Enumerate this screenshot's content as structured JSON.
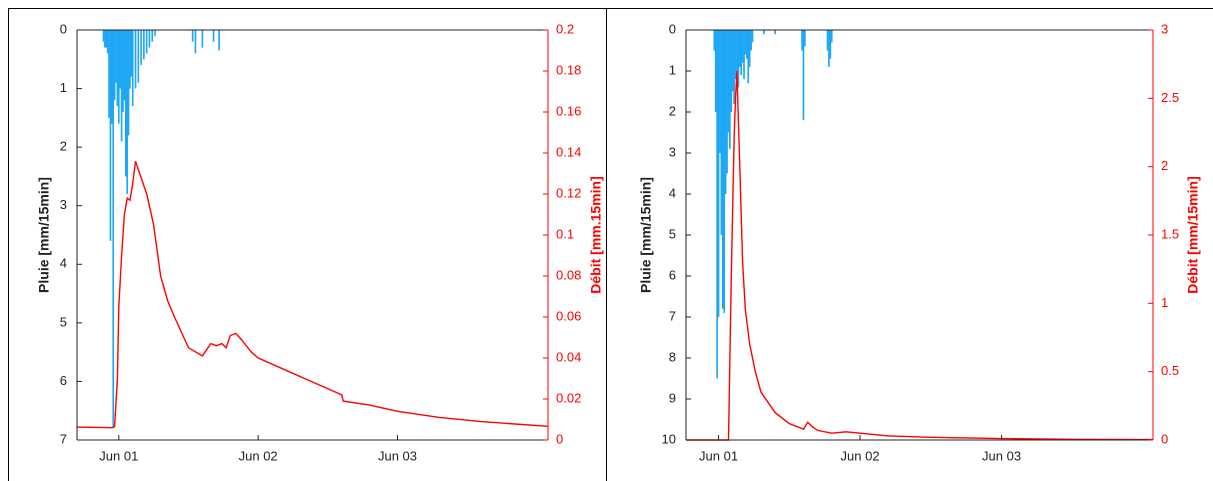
{
  "chart_data": [
    {
      "type": "hyetograph",
      "ylabel": "Pluie [mm/15min]",
      "y2label": "Débit [mm.15min]",
      "ylim": [
        0,
        7
      ],
      "yticks": [
        0,
        1,
        2,
        3,
        4,
        5,
        6,
        7
      ],
      "yreverse": true,
      "y2lim": [
        0,
        0.2
      ],
      "y2ticks": [
        0,
        0.02,
        0.04,
        0.06,
        0.08,
        0.1,
        0.12,
        0.14,
        0.16,
        0.18,
        0.2
      ],
      "xlim": [
        0.7,
        4.08
      ],
      "xticks": [
        {
          "value": 1,
          "label": "Jun 01"
        },
        {
          "value": 2,
          "label": "Jun 02"
        },
        {
          "value": 3,
          "label": "Jun 03"
        }
      ],
      "rain": {
        "color": "#1ea7f5",
        "x": [
          0.89,
          0.9,
          0.91,
          0.92,
          0.93,
          0.94,
          0.95,
          0.96,
          0.97,
          0.98,
          0.99,
          1.0,
          1.01,
          1.02,
          1.03,
          1.04,
          1.05,
          1.06,
          1.07,
          1.08,
          1.09,
          1.1,
          1.12,
          1.14,
          1.16,
          1.18,
          1.2,
          1.22,
          1.24,
          1.26,
          1.53,
          1.55,
          1.6,
          1.68,
          1.72
        ],
        "values": [
          0.2,
          0.3,
          0.3,
          0.4,
          1.5,
          3.6,
          1.6,
          6.8,
          1.2,
          0.9,
          1.3,
          1.6,
          1.0,
          1.9,
          1.4,
          1.2,
          2.5,
          2.8,
          1.8,
          1.0,
          0.8,
          1.3,
          1.0,
          0.9,
          0.6,
          0.5,
          0.4,
          0.3,
          0.2,
          0.1,
          0.2,
          0.4,
          0.3,
          0.2,
          0.35
        ]
      },
      "flow": {
        "color": "#ff0000",
        "axis": "y2",
        "x": [
          0.7,
          0.95,
          0.97,
          0.99,
          1.0,
          1.02,
          1.04,
          1.06,
          1.08,
          1.1,
          1.12,
          1.15,
          1.2,
          1.25,
          1.3,
          1.35,
          1.4,
          1.5,
          1.6,
          1.63,
          1.66,
          1.7,
          1.74,
          1.77,
          1.8,
          1.84,
          1.88,
          1.95,
          2.0,
          2.2,
          2.4,
          2.6,
          2.61,
          2.8,
          3.0,
          3.3,
          3.6,
          4.08
        ],
        "values": [
          0.0063,
          0.006,
          0.0065,
          0.03,
          0.065,
          0.09,
          0.11,
          0.118,
          0.117,
          0.125,
          0.136,
          0.13,
          0.12,
          0.105,
          0.08,
          0.068,
          0.06,
          0.045,
          0.041,
          0.044,
          0.047,
          0.046,
          0.047,
          0.045,
          0.051,
          0.052,
          0.049,
          0.043,
          0.04,
          0.034,
          0.028,
          0.022,
          0.019,
          0.017,
          0.014,
          0.011,
          0.009,
          0.0067
        ]
      }
    },
    {
      "type": "hyetograph",
      "ylabel": "Pluie [mm/15min]",
      "y2label": "Débit [mm/15min]",
      "ylim": [
        0,
        10
      ],
      "yticks": [
        0,
        1,
        2,
        3,
        4,
        5,
        6,
        7,
        8,
        9,
        10
      ],
      "yreverse": true,
      "y2lim": [
        0,
        3
      ],
      "y2ticks": [
        0,
        0.5,
        1,
        1.5,
        2,
        2.5,
        3
      ],
      "xlim": [
        0.77,
        4.07
      ],
      "xticks": [
        {
          "value": 1,
          "label": "Jun 01"
        },
        {
          "value": 2,
          "label": "Jun 02"
        },
        {
          "value": 3,
          "label": "Jun 03"
        }
      ],
      "rain": {
        "color": "#1ea7f5",
        "x": [
          0.97,
          0.98,
          0.99,
          1.0,
          1.01,
          1.02,
          1.03,
          1.04,
          1.05,
          1.06,
          1.07,
          1.08,
          1.09,
          1.1,
          1.11,
          1.12,
          1.13,
          1.14,
          1.15,
          1.16,
          1.17,
          1.18,
          1.19,
          1.2,
          1.21,
          1.22,
          1.23,
          1.24,
          1.32,
          1.4,
          1.59,
          1.6,
          1.61,
          1.77,
          1.78,
          1.79,
          1.8
        ],
        "values": [
          0.5,
          2.0,
          8.5,
          7.0,
          3.0,
          5.0,
          6.8,
          6.9,
          4.0,
          3.5,
          2.5,
          2.9,
          2.0,
          1.5,
          1.8,
          1.2,
          1.0,
          1.4,
          0.9,
          1.1,
          0.8,
          1.2,
          0.6,
          0.7,
          1.3,
          0.9,
          0.5,
          0.3,
          0.1,
          0.1,
          0.5,
          2.2,
          0.4,
          0.5,
          0.9,
          0.7,
          0.3
        ]
      },
      "flow": {
        "color": "#ff0000",
        "axis": "y2",
        "x": [
          0.77,
          1.07,
          1.09,
          1.11,
          1.12,
          1.13,
          1.15,
          1.17,
          1.19,
          1.22,
          1.26,
          1.3,
          1.4,
          1.5,
          1.6,
          1.63,
          1.66,
          1.7,
          1.8,
          1.9,
          2.0,
          2.2,
          2.5,
          3.0,
          3.5,
          4.07
        ],
        "values": [
          0,
          0,
          1.2,
          2.2,
          2.5,
          2.7,
          2.0,
          1.3,
          0.95,
          0.7,
          0.5,
          0.35,
          0.2,
          0.12,
          0.08,
          0.13,
          0.1,
          0.07,
          0.05,
          0.06,
          0.05,
          0.03,
          0.02,
          0.01,
          0.005,
          0.003
        ]
      }
    }
  ]
}
